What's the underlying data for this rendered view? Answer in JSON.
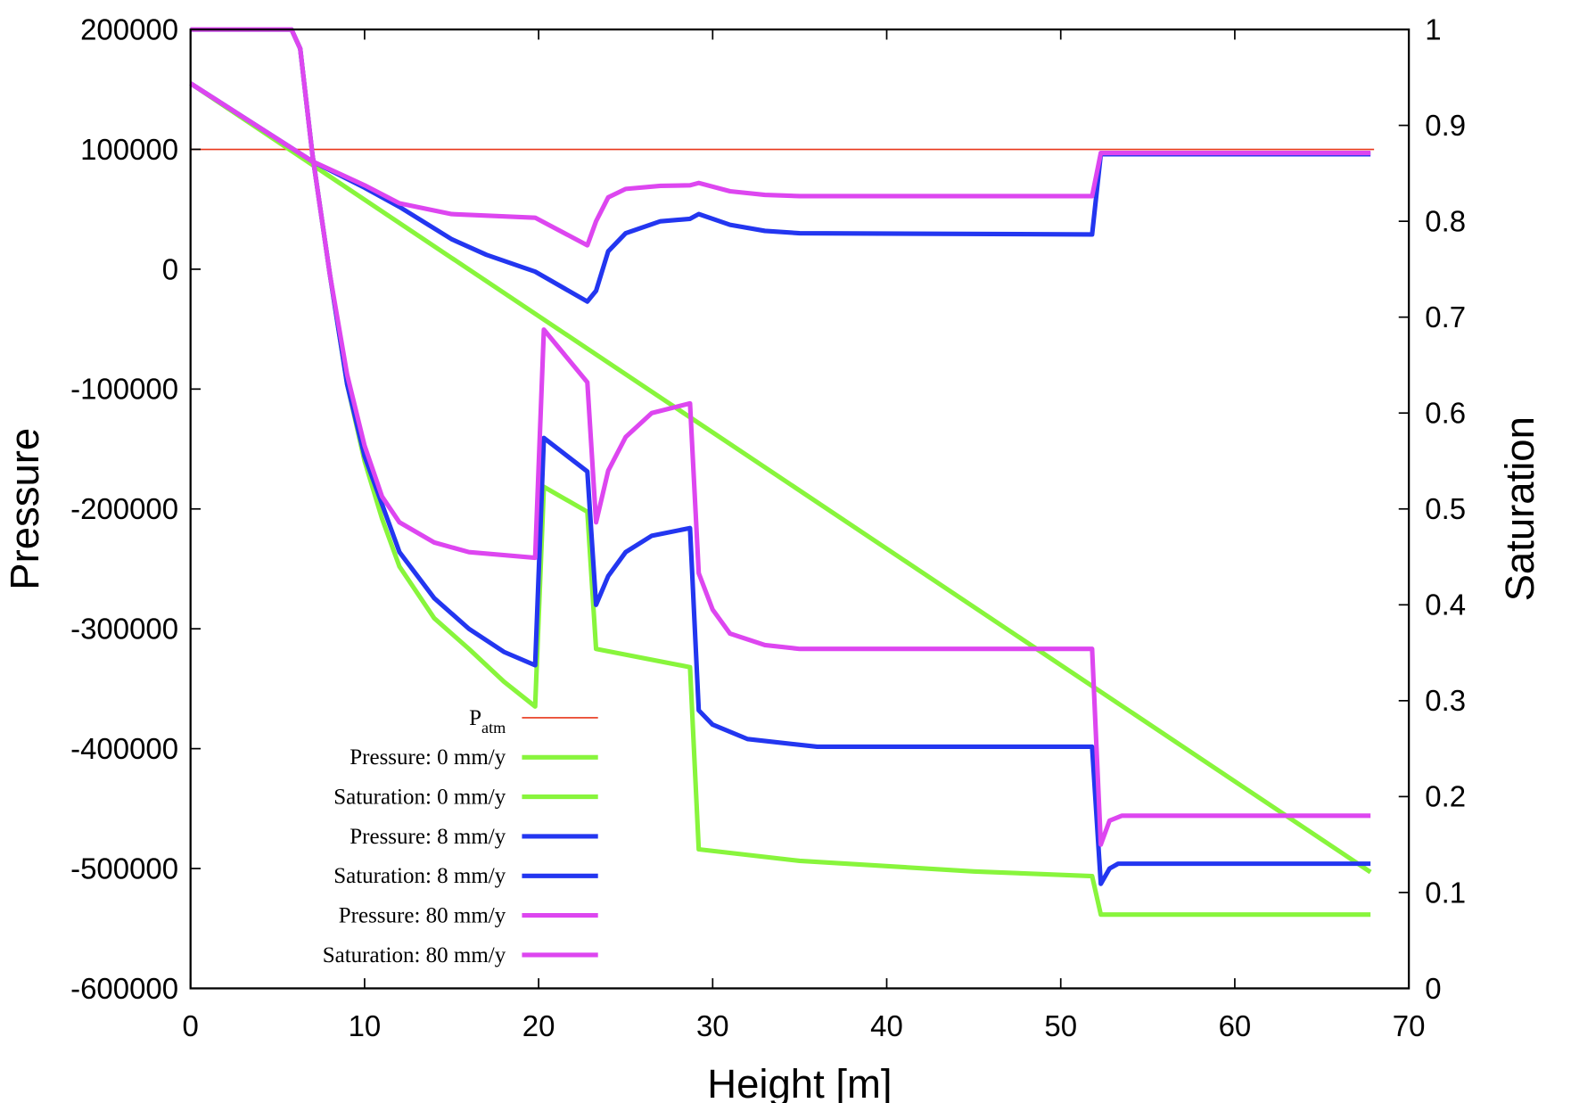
{
  "chart_data": {
    "type": "line",
    "title": "",
    "xlabel": "Height [m]",
    "ylabel": "Pressure",
    "y2label": "Saturation",
    "xlim": [
      0,
      70
    ],
    "ylim": [
      -600000,
      200000
    ],
    "y2lim": [
      0,
      1
    ],
    "xticks": [
      0,
      10,
      20,
      30,
      40,
      50,
      60,
      70
    ],
    "yticks": [
      -600000,
      -500000,
      -400000,
      -300000,
      -200000,
      -100000,
      0,
      100000,
      200000
    ],
    "y2ticks": [
      "0",
      "0.1",
      "0.2",
      "0.3",
      "0.4",
      "0.5",
      "0.6",
      "0.7",
      "0.8",
      "0.9",
      "1"
    ],
    "grid": false,
    "legend_placement": "bottom-left",
    "series": [
      {
        "name": "P",
        "name_sub": "atm",
        "axis": "left",
        "color": "#e8361a",
        "width": "thin",
        "points": [
          [
            0,
            100000
          ],
          [
            68,
            100000
          ]
        ]
      },
      {
        "name": "Pressure: 0 mm/y",
        "axis": "left",
        "color": "#88f53c",
        "points": [
          [
            0,
            155000
          ],
          [
            67.8,
            -503000
          ]
        ]
      },
      {
        "name": "Saturation: 0 mm/y",
        "axis": "right",
        "color": "#88f53c",
        "points": [
          [
            0,
            1
          ],
          [
            5.8,
            1
          ],
          [
            6.3,
            0.98
          ],
          [
            7,
            0.87
          ],
          [
            8,
            0.745
          ],
          [
            9,
            0.63
          ],
          [
            10,
            0.55
          ],
          [
            11,
            0.49
          ],
          [
            12,
            0.44
          ],
          [
            14,
            0.386
          ],
          [
            16,
            0.354
          ],
          [
            18,
            0.32
          ],
          [
            19.8,
            0.294
          ],
          [
            20.3,
            0.523
          ],
          [
            22.8,
            0.497
          ],
          [
            23.3,
            0.354
          ],
          [
            28.7,
            0.335
          ],
          [
            29.2,
            0.145
          ],
          [
            35,
            0.133
          ],
          [
            45,
            0.122
          ],
          [
            51.8,
            0.117
          ],
          [
            52.3,
            0.077
          ],
          [
            67.8,
            0.077
          ]
        ]
      },
      {
        "name": "Pressure: 8 mm/y",
        "axis": "left",
        "color": "#2336f0",
        "points": [
          [
            0,
            155000
          ],
          [
            7,
            90000
          ],
          [
            10,
            68000
          ],
          [
            12,
            52000
          ],
          [
            15,
            25000
          ],
          [
            17,
            12000
          ],
          [
            19.8,
            -2000
          ],
          [
            22.8,
            -27000
          ],
          [
            23.3,
            -18000
          ],
          [
            24,
            15000
          ],
          [
            25,
            30000
          ],
          [
            27,
            40000
          ],
          [
            28.7,
            42000
          ],
          [
            29.2,
            46000
          ],
          [
            31,
            37000
          ],
          [
            33,
            32000
          ],
          [
            35,
            30000
          ],
          [
            51.8,
            29000
          ],
          [
            52.3,
            96000
          ],
          [
            67.8,
            96000
          ]
        ]
      },
      {
        "name": "Saturation: 8 mm/y",
        "axis": "right",
        "color": "#2336f0",
        "points": [
          [
            0,
            1
          ],
          [
            5.8,
            1
          ],
          [
            6.3,
            0.98
          ],
          [
            7,
            0.87
          ],
          [
            8,
            0.745
          ],
          [
            9,
            0.63
          ],
          [
            10,
            0.555
          ],
          [
            12,
            0.455
          ],
          [
            14,
            0.407
          ],
          [
            16,
            0.375
          ],
          [
            18,
            0.351
          ],
          [
            19.8,
            0.337
          ],
          [
            20.3,
            0.574
          ],
          [
            22.8,
            0.539
          ],
          [
            23.3,
            0.4
          ],
          [
            24,
            0.43
          ],
          [
            25,
            0.455
          ],
          [
            26.5,
            0.472
          ],
          [
            28.7,
            0.48
          ],
          [
            29.2,
            0.29
          ],
          [
            30,
            0.275
          ],
          [
            32,
            0.26
          ],
          [
            36,
            0.252
          ],
          [
            51.8,
            0.252
          ],
          [
            52.3,
            0.109
          ],
          [
            52.8,
            0.125
          ],
          [
            53.3,
            0.13
          ],
          [
            67.8,
            0.13
          ]
        ]
      },
      {
        "name": "Pressure: 80 mm/y",
        "axis": "left",
        "color": "#dd46f0",
        "points": [
          [
            0,
            155000
          ],
          [
            7,
            90000
          ],
          [
            10,
            70000
          ],
          [
            12,
            55000
          ],
          [
            15,
            46000
          ],
          [
            19.8,
            43000
          ],
          [
            22.8,
            20000
          ],
          [
            23.3,
            40000
          ],
          [
            24,
            60000
          ],
          [
            25,
            67000
          ],
          [
            27,
            69500
          ],
          [
            28.7,
            70000
          ],
          [
            29.2,
            72000
          ],
          [
            31,
            65000
          ],
          [
            33,
            62000
          ],
          [
            35,
            61000
          ],
          [
            51.8,
            61000
          ],
          [
            52.3,
            97000
          ],
          [
            67.8,
            97000
          ]
        ]
      },
      {
        "name": "Saturation: 80 mm/y",
        "axis": "right",
        "color": "#dd46f0",
        "points": [
          [
            0,
            1
          ],
          [
            5.8,
            1
          ],
          [
            6.3,
            0.98
          ],
          [
            7,
            0.87
          ],
          [
            8,
            0.745
          ],
          [
            9,
            0.64
          ],
          [
            10,
            0.566
          ],
          [
            11,
            0.513
          ],
          [
            12,
            0.486
          ],
          [
            14,
            0.465
          ],
          [
            16,
            0.455
          ],
          [
            19.8,
            0.449
          ],
          [
            20.3,
            0.687
          ],
          [
            22.8,
            0.632
          ],
          [
            23.3,
            0.486
          ],
          [
            24,
            0.54
          ],
          [
            25,
            0.575
          ],
          [
            26.5,
            0.6
          ],
          [
            28.7,
            0.61
          ],
          [
            29.2,
            0.433
          ],
          [
            30,
            0.395
          ],
          [
            31,
            0.37
          ],
          [
            33,
            0.358
          ],
          [
            35,
            0.354
          ],
          [
            51.8,
            0.354
          ],
          [
            52.3,
            0.15
          ],
          [
            52.8,
            0.175
          ],
          [
            53.5,
            0.18
          ],
          [
            67.8,
            0.18
          ]
        ]
      }
    ]
  }
}
